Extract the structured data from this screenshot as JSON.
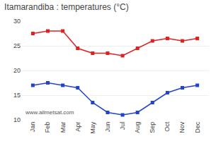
{
  "chart_data": {
    "type": "line",
    "title": "Itamarandiba : temperatures (°C)",
    "categories": [
      "Jan",
      "Feb",
      "Mar",
      "Apr",
      "May",
      "Jun",
      "Jul",
      "Aug",
      "Sep",
      "Oct",
      "Nov",
      "Dec"
    ],
    "series": [
      {
        "color": "#dd2222",
        "marker": "square",
        "values": [
          27.5,
          28.0,
          28.0,
          24.5,
          23.5,
          23.5,
          23.0,
          24.5,
          26.0,
          26.5,
          26.0,
          26.5
        ]
      },
      {
        "color": "#2244cc",
        "marker": "square",
        "values": [
          17.0,
          17.5,
          17.0,
          16.5,
          13.5,
          11.5,
          11.0,
          11.5,
          13.5,
          15.5,
          16.5,
          17.0
        ]
      }
    ],
    "ylim": [
      10,
      30
    ],
    "yticks": [
      10,
      15,
      20,
      25,
      30
    ],
    "grid": true,
    "annotations": [
      "www.allmetsat.com"
    ]
  }
}
